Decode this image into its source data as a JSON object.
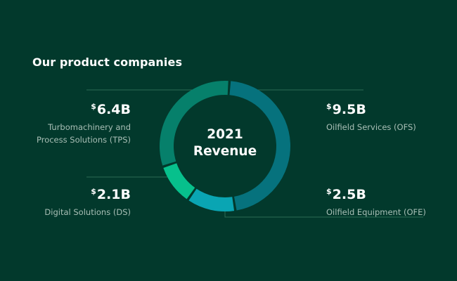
{
  "heading": "Our product companies",
  "chart_data": {
    "type": "pie",
    "center_label": [
      "2021",
      "Revenue"
    ],
    "currency_symbol": "$",
    "slices": [
      {
        "label": "Oilfield Services (OFS)",
        "value": 9.5,
        "display": "9.5B",
        "color": "#06727d"
      },
      {
        "label": "Oilfield Equipment (OFE)",
        "value": 2.5,
        "display": "2.5B",
        "color": "#0aa5b3"
      },
      {
        "label": "Digital Solutions (DS)",
        "value": 2.1,
        "display": "2.1B",
        "color": "#07c08c"
      },
      {
        "label": "Turbomachinery and Process Solutions (TPS)",
        "label_lines": [
          "Turbomachinery and",
          "Process Solutions (TPS)"
        ],
        "value": 6.4,
        "display": "6.4B",
        "color": "#06806b"
      }
    ]
  },
  "colors": {
    "background": "#02392c",
    "leader_line": "#2c6c55",
    "label_text": "#a9bfb6"
  }
}
